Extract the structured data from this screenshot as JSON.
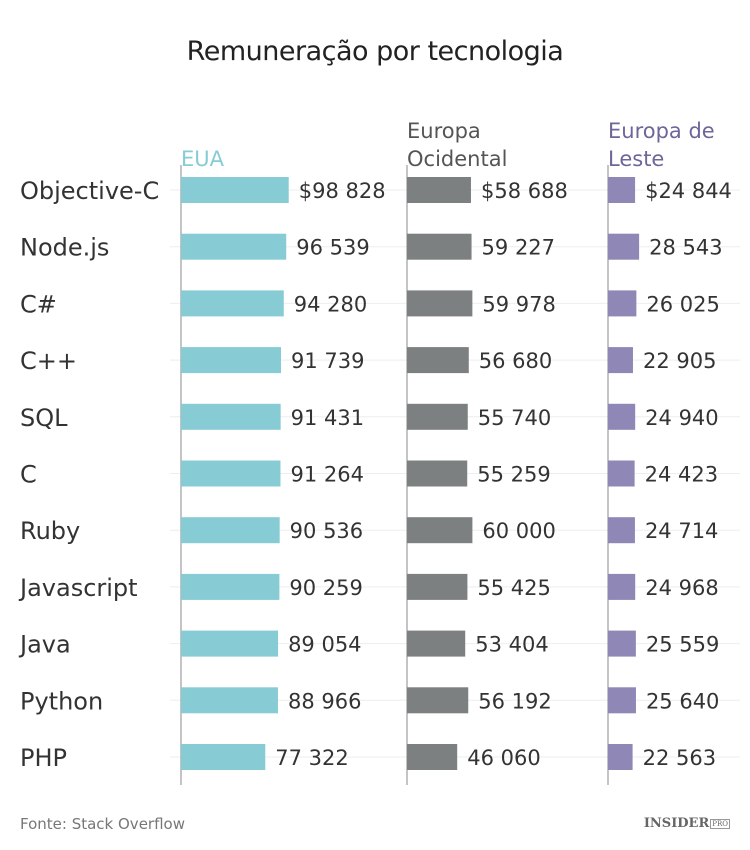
{
  "chart_data": {
    "type": "bar",
    "orientation": "horizontal",
    "title": "Remuneração por tecnologia",
    "categories": [
      "Objective-C",
      "Node.js",
      "C#",
      "C++",
      "SQL",
      "C",
      "Ruby",
      "Javascript",
      "Java",
      "Python",
      "PHP"
    ],
    "series": [
      {
        "name": "EUA",
        "color": "#87ccd4",
        "values": [
          98828,
          96539,
          94280,
          91739,
          91431,
          91264,
          90536,
          90259,
          89054,
          88966,
          77322
        ],
        "labels": [
          "$98 828",
          "96 539",
          "94 280",
          "91 739",
          "91 431",
          "91 264",
          "90 536",
          "90 259",
          "89 054",
          "88 966",
          "77 322"
        ]
      },
      {
        "name": "Europa Ocidental",
        "name_lines": [
          "Europa",
          "Ocidental"
        ],
        "color": "#7d8081",
        "title_color": "#555",
        "values": [
          58688,
          59227,
          59978,
          56680,
          55740,
          55259,
          60000,
          55425,
          53404,
          56192,
          46060
        ],
        "labels": [
          "$58 688",
          "59 227",
          "59 978",
          "56 680",
          "55 740",
          "55 259",
          "60 000",
          "55 425",
          "53 404",
          "56 192",
          "46 060"
        ]
      },
      {
        "name": "Europa de Leste",
        "name_lines": [
          "Europa de",
          "Leste"
        ],
        "color": "#8f87b5",
        "title_color": "#6e6699",
        "values": [
          24844,
          28543,
          26025,
          22905,
          24940,
          24423,
          24714,
          24968,
          25559,
          25640,
          22563
        ],
        "labels": [
          "$24 844",
          "28 543",
          "26 025",
          "22 905",
          "24 940",
          "24 423",
          "24 714",
          "24 968",
          "25 559",
          "25 640",
          "22 563"
        ]
      }
    ],
    "grid": true,
    "legend": "column-headers"
  },
  "source": "Fonte: Stack Overflow",
  "logo": {
    "text": "INSIDER",
    "sup": "PRO"
  }
}
